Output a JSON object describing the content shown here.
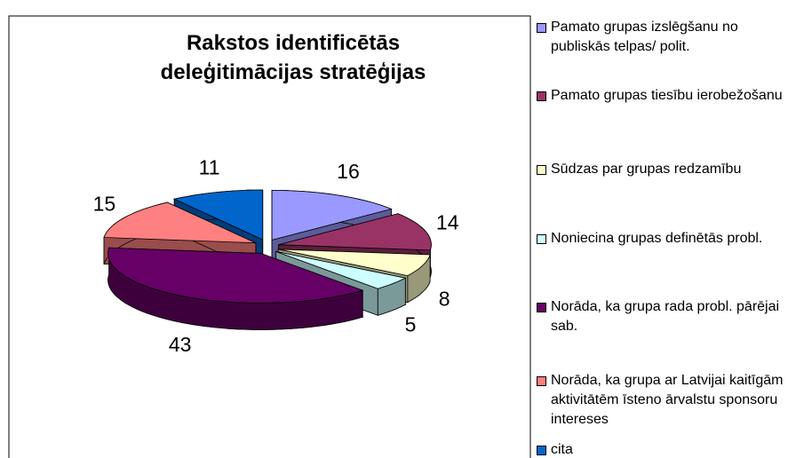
{
  "chart_data": {
    "type": "pie3d",
    "title": "Rakstos identificētās deleģitimācijas stratēģijas",
    "categories": [
      "Pamato grupas izslēgšanu no publiskās telpas/ polit.",
      "Pamato grupas tiesību ierobežošanu",
      "Sūdzas par grupas redzamību",
      "Noniecina grupas definētās probl.",
      "Norāda, ka grupa rada probl. pārējai sab.",
      "Norāda, ka grupa ar Latvijai kaitīgām aktivitātēm īsteno ārvalstu sponsoru intereses",
      "cita"
    ],
    "values": [
      16,
      14,
      8,
      5,
      43,
      15,
      11
    ],
    "colors": [
      "#9999ff",
      "#993366",
      "#ffffcc",
      "#ccffff",
      "#660066",
      "#ff8080",
      "#0066cc"
    ],
    "legend": "right"
  }
}
